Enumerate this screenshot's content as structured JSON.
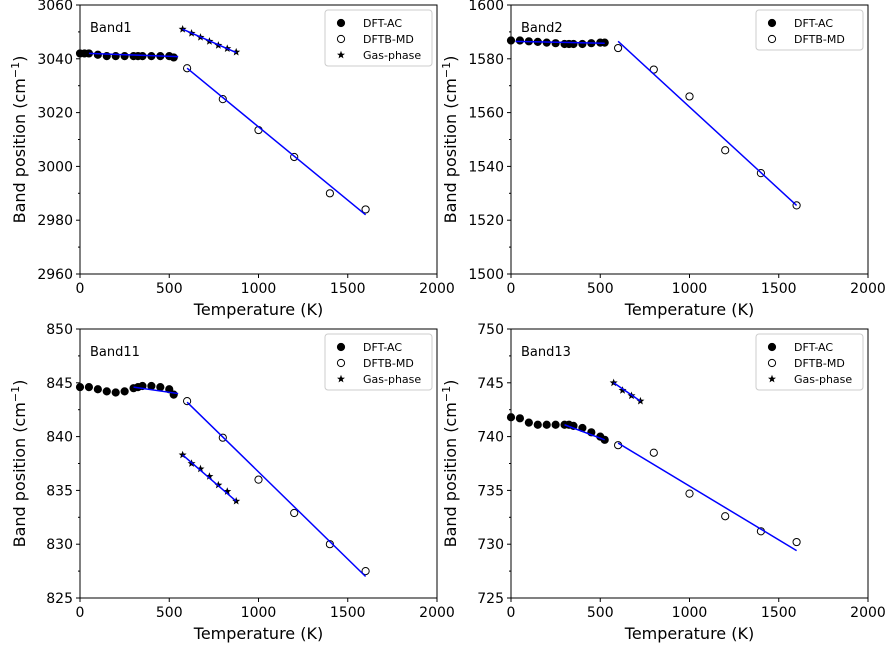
{
  "chart_data": [
    {
      "type": "scatter",
      "title": "Band1",
      "xlabel": "Temperature (K)",
      "ylabel": "Band position (cm",
      "ylabel_sup": "−1",
      "xlim": [
        0,
        2000
      ],
      "ylim": [
        2960,
        3060
      ],
      "xticks": [
        0,
        500,
        1000,
        1500,
        2000
      ],
      "yticks": [
        2960,
        2980,
        3000,
        3020,
        3040,
        3060
      ],
      "series": [
        {
          "name": "DFT-AC",
          "marker": "filled-circle",
          "color": "#000000",
          "x": [
            0,
            25,
            50,
            100,
            150,
            200,
            250,
            300,
            325,
            350,
            400,
            450,
            500,
            525
          ],
          "y": [
            3042,
            3042,
            3042,
            3041.5,
            3041,
            3041,
            3041,
            3041,
            3041,
            3041,
            3041,
            3041,
            3041,
            3040.5
          ]
        },
        {
          "name": "DFTB-MD",
          "marker": "open-circle",
          "color": "#000000",
          "x": [
            600,
            800,
            1000,
            1200,
            1400,
            1600
          ],
          "y": [
            3036.5,
            3025,
            3013.5,
            3003.5,
            2990,
            2984
          ]
        },
        {
          "name": "Gas-phase",
          "marker": "star",
          "color": "#000000",
          "x": [
            575,
            625,
            675,
            725,
            775,
            825,
            875
          ],
          "y": [
            3051,
            3049.5,
            3048,
            3046.5,
            3045,
            3043.8,
            3042.5
          ]
        }
      ],
      "fit_lines": [
        {
          "color": "#0000ff",
          "x": [
            50,
            550
          ],
          "y": [
            3042,
            3040.8
          ]
        },
        {
          "color": "#0000ff",
          "x": [
            600,
            1600
          ],
          "y": [
            3036.5,
            2982
          ]
        },
        {
          "color": "#0000ff",
          "x": [
            575,
            875
          ],
          "y": [
            3051,
            3042.3
          ]
        }
      ],
      "legend": [
        "DFT-AC",
        "DFTB-MD",
        "Gas-phase"
      ],
      "legend_position": "top-right",
      "grid": false
    },
    {
      "type": "scatter",
      "title": "Band2",
      "xlabel": "Temperature (K)",
      "ylabel": "Band position (cm",
      "ylabel_sup": "−1",
      "xlim": [
        0,
        2000
      ],
      "ylim": [
        1500,
        1600
      ],
      "xticks": [
        0,
        500,
        1000,
        1500,
        2000
      ],
      "yticks": [
        1500,
        1520,
        1540,
        1560,
        1580,
        1600
      ],
      "series": [
        {
          "name": "DFT-AC",
          "marker": "filled-circle",
          "color": "#000000",
          "x": [
            0,
            50,
            100,
            150,
            200,
            250,
            300,
            325,
            350,
            400,
            450,
            500,
            525
          ],
          "y": [
            1586.8,
            1586.8,
            1586.5,
            1586.3,
            1586,
            1585.8,
            1585.5,
            1585.5,
            1585.5,
            1585.5,
            1585.8,
            1586,
            1586
          ]
        },
        {
          "name": "DFTB-MD",
          "marker": "open-circle",
          "color": "#000000",
          "x": [
            600,
            800,
            1000,
            1200,
            1400,
            1600
          ],
          "y": [
            1584,
            1576,
            1566,
            1546,
            1537.5,
            1525.5
          ]
        }
      ],
      "fit_lines": [
        {
          "color": "#0000ff",
          "x": [
            25,
            525
          ],
          "y": [
            1586.5,
            1585.8
          ]
        },
        {
          "color": "#0000ff",
          "x": [
            600,
            1600
          ],
          "y": [
            1586.5,
            1525.5
          ]
        }
      ],
      "legend": [
        "DFT-AC",
        "DFTB-MD"
      ],
      "legend_position": "top-right",
      "grid": false
    },
    {
      "type": "scatter",
      "title": "Band11",
      "xlabel": "Temperature (K)",
      "ylabel": "Band position (cm",
      "ylabel_sup": "−1",
      "xlim": [
        0,
        2000
      ],
      "ylim": [
        825,
        850
      ],
      "xticks": [
        0,
        500,
        1000,
        1500,
        2000
      ],
      "yticks": [
        825,
        830,
        835,
        840,
        845,
        850
      ],
      "series": [
        {
          "name": "DFT-AC",
          "marker": "filled-circle",
          "color": "#000000",
          "x": [
            0,
            50,
            100,
            150,
            200,
            250,
            300,
            325,
            350,
            400,
            450,
            500,
            525
          ],
          "y": [
            844.6,
            844.6,
            844.4,
            844.2,
            844.1,
            844.2,
            844.5,
            844.6,
            844.7,
            844.7,
            844.6,
            844.4,
            843.9
          ]
        },
        {
          "name": "DFTB-MD",
          "marker": "open-circle",
          "color": "#000000",
          "x": [
            600,
            800,
            1000,
            1200,
            1400,
            1600
          ],
          "y": [
            843.3,
            839.9,
            836,
            832.9,
            830,
            827.5
          ]
        },
        {
          "name": "Gas-phase",
          "marker": "star",
          "color": "#000000",
          "x": [
            575,
            625,
            675,
            725,
            775,
            825,
            875
          ],
          "y": [
            838.3,
            837.5,
            837,
            836.3,
            835.5,
            834.9,
            834
          ]
        }
      ],
      "fit_lines": [
        {
          "color": "#0000ff",
          "x": [
            300,
            550
          ],
          "y": [
            844.6,
            844
          ]
        },
        {
          "color": "#0000ff",
          "x": [
            600,
            1600
          ],
          "y": [
            843.2,
            827
          ]
        },
        {
          "color": "#0000ff",
          "x": [
            575,
            875
          ],
          "y": [
            838.3,
            834
          ]
        }
      ],
      "legend": [
        "DFT-AC",
        "DFTB-MD",
        "Gas-phase"
      ],
      "legend_position": "top-right",
      "grid": false
    },
    {
      "type": "scatter",
      "title": "Band13",
      "xlabel": "Temperature (K)",
      "ylabel": "Band position (cm",
      "ylabel_sup": "−1",
      "xlim": [
        0,
        2000
      ],
      "ylim": [
        725,
        750
      ],
      "xticks": [
        0,
        500,
        1000,
        1500,
        2000
      ],
      "yticks": [
        725,
        730,
        735,
        740,
        745,
        750
      ],
      "series": [
        {
          "name": "DFT-AC",
          "marker": "filled-circle",
          "color": "#000000",
          "x": [
            0,
            50,
            100,
            150,
            200,
            250,
            300,
            325,
            350,
            400,
            450,
            500,
            525
          ],
          "y": [
            741.8,
            741.7,
            741.3,
            741.1,
            741.1,
            741.1,
            741.1,
            741.1,
            741,
            740.8,
            740.4,
            740,
            739.7
          ]
        },
        {
          "name": "DFTB-MD",
          "marker": "open-circle",
          "color": "#000000",
          "x": [
            600,
            800,
            1000,
            1200,
            1400,
            1600
          ],
          "y": [
            739.2,
            738.5,
            734.7,
            732.6,
            731.2,
            730.2
          ]
        },
        {
          "name": "Gas-phase",
          "marker": "star",
          "color": "#000000",
          "x": [
            575,
            625,
            675,
            725
          ],
          "y": [
            745,
            744.3,
            743.8,
            743.3
          ]
        }
      ],
      "fit_lines": [
        {
          "color": "#0000ff",
          "x": [
            300,
            525
          ],
          "y": [
            741.1,
            739.7
          ]
        },
        {
          "color": "#0000ff",
          "x": [
            600,
            1600
          ],
          "y": [
            739.4,
            729.4
          ]
        },
        {
          "color": "#0000ff",
          "x": [
            575,
            725
          ],
          "y": [
            745,
            743.3
          ]
        }
      ],
      "legend": [
        "DFT-AC",
        "DFTB-MD",
        "Gas-phase"
      ],
      "legend_position": "top-right",
      "grid": false
    }
  ]
}
